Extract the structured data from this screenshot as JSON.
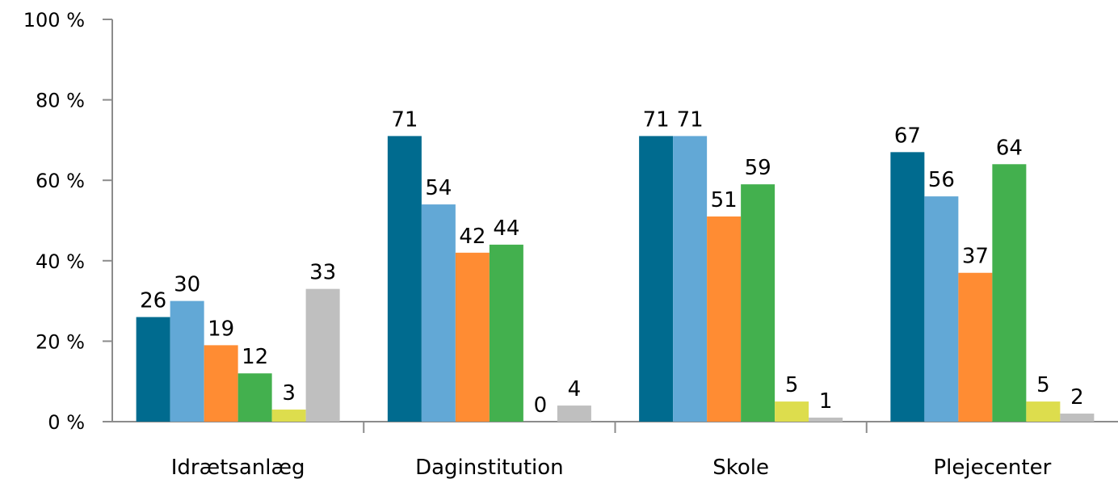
{
  "chart_data": {
    "type": "bar",
    "title": "",
    "xlabel": "",
    "ylabel": "",
    "ylim": [
      0,
      100
    ],
    "yticks": [
      "0 %",
      "20 %",
      "40 %",
      "60 %",
      "80 %",
      "100 %"
    ],
    "ytick_values": [
      0,
      20,
      40,
      60,
      80,
      100
    ],
    "grid": false,
    "legend": "none",
    "categories": [
      "Idrætsanlæg",
      "Daginstitution",
      "Skole",
      "Plejecenter"
    ],
    "series": [
      {
        "color": "#006b8f",
        "values": [
          26,
          71,
          71,
          67
        ]
      },
      {
        "color": "#62a8d6",
        "values": [
          30,
          54,
          71,
          56
        ]
      },
      {
        "color": "#ff8c33",
        "values": [
          19,
          42,
          51,
          37
        ]
      },
      {
        "color": "#43b04e",
        "values": [
          12,
          44,
          59,
          64
        ]
      },
      {
        "color": "#dddd4d",
        "values": [
          3,
          0,
          5,
          5
        ]
      },
      {
        "color": "#bfbfbf",
        "values": [
          33,
          4,
          1,
          2
        ]
      }
    ]
  }
}
